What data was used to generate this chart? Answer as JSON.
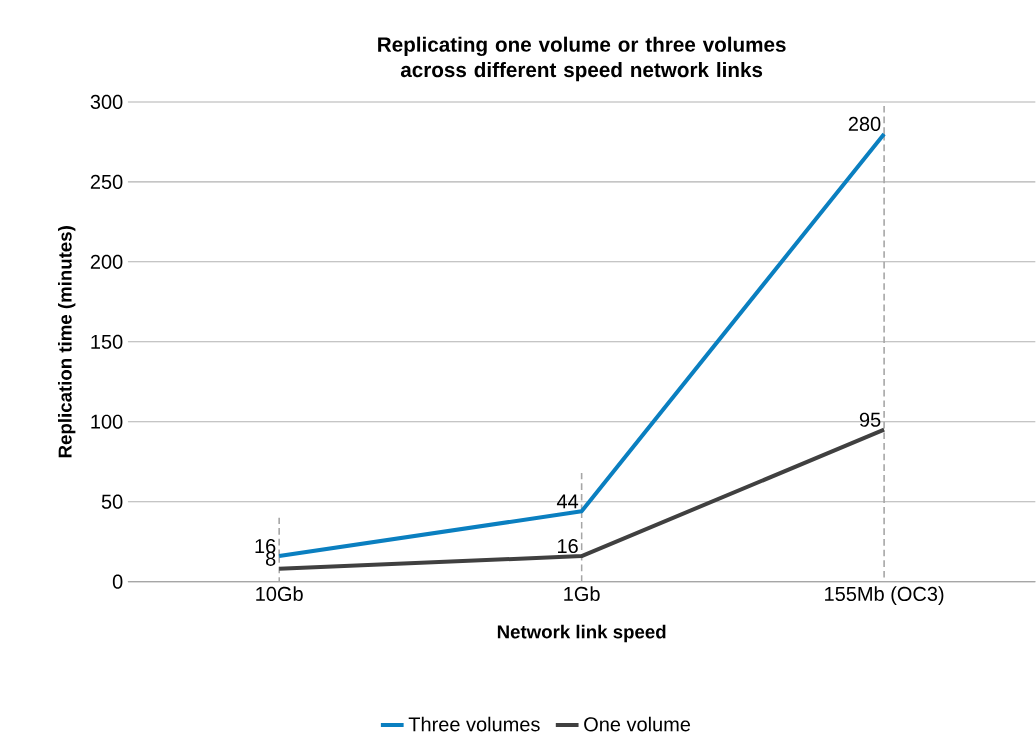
{
  "chart_data": {
    "type": "line",
    "title": "Replicating one volume or three volumes across different speed network links",
    "xlabel": "Network link speed",
    "ylabel": "Replication time (minutes)",
    "categories": [
      "10Gb",
      "1Gb",
      "155Mb (OC3)"
    ],
    "series": [
      {
        "name": "Three volumes",
        "color": "#0a7fc0",
        "values": [
          16,
          44,
          280
        ],
        "errors": [
          [
            0,
            40
          ],
          [
            0,
            68
          ],
          [
            0,
            300
          ]
        ]
      },
      {
        "name": "One volume",
        "color": "#404040",
        "values": [
          8,
          16,
          95
        ]
      }
    ],
    "ylim": [
      0,
      300
    ],
    "yticks": [
      0,
      50,
      100,
      150,
      200,
      250,
      300
    ],
    "grid": "y",
    "legend": "bottom",
    "data_labels": true,
    "marker": "none",
    "line_style": "solid"
  }
}
